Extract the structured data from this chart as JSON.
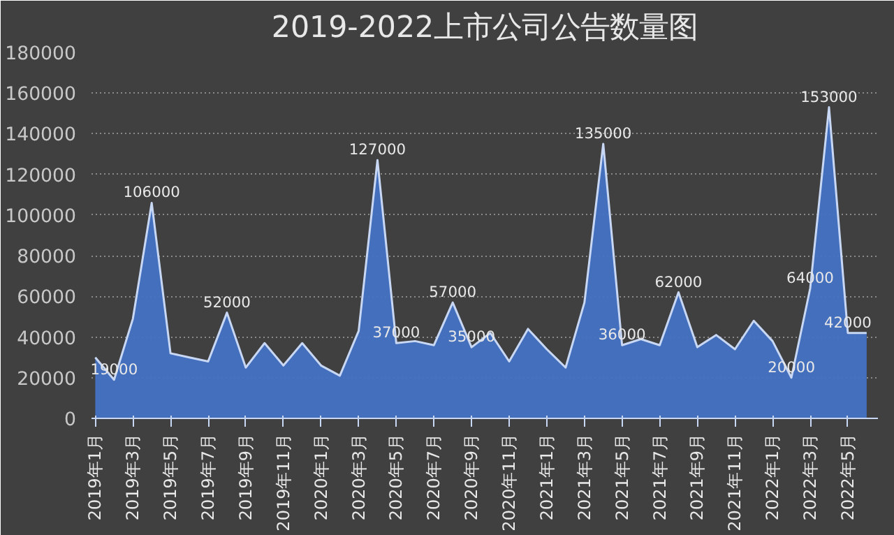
{
  "chart_data": {
    "type": "area",
    "title": "2019-2022上市公司公告数量图",
    "categories": [
      "2019年1月",
      null,
      "2019年3月",
      null,
      "2019年5月",
      null,
      "2019年7月",
      null,
      "2019年9月",
      null,
      "2019年11月",
      null,
      "2020年1月",
      null,
      "2020年3月",
      null,
      "2020年5月",
      null,
      "2020年7月",
      null,
      "2020年9月",
      null,
      "2020年11月",
      null,
      "2021年1月",
      null,
      "2021年3月",
      null,
      "2021年5月",
      null,
      "2021年7月",
      null,
      "2021年9月",
      null,
      "2021年11月",
      null,
      "2022年1月",
      null,
      "2022年3月",
      null,
      "2022年5月",
      null
    ],
    "series": [
      {
        "color": "#4472c4",
        "values": [
          30000,
          19000,
          49000,
          106000,
          32000,
          30000,
          28000,
          52000,
          25000,
          37000,
          26000,
          37000,
          26000,
          21000,
          43000,
          127000,
          37000,
          38000,
          36000,
          57000,
          35000,
          42000,
          28000,
          44000,
          34000,
          25000,
          57000,
          135000,
          36000,
          39000,
          36000,
          62000,
          35000,
          41000,
          34000,
          48000,
          38000,
          20000,
          64000,
          153000,
          42000,
          42000
        ],
        "value_labels": [
          null,
          "19000",
          null,
          "106000",
          null,
          null,
          null,
          "52000",
          null,
          null,
          null,
          null,
          null,
          null,
          null,
          "127000",
          "37000",
          null,
          null,
          "57000",
          "35000",
          null,
          null,
          null,
          null,
          null,
          null,
          "135000",
          "36000",
          null,
          null,
          "62000",
          null,
          null,
          null,
          null,
          null,
          "20000",
          "64000",
          "153000",
          "42000",
          null
        ]
      }
    ],
    "ylim": [
      0,
      180000
    ],
    "yticks": [
      0,
      20000,
      40000,
      60000,
      80000,
      100000,
      120000,
      140000,
      160000,
      180000
    ],
    "grid": "y"
  }
}
